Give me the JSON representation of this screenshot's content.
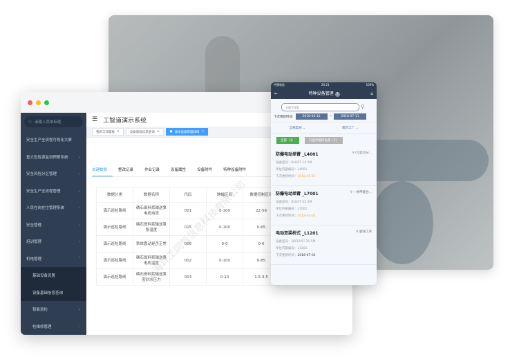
{
  "desktop": {
    "search_placeholder": "请输入菜单标题",
    "menu": [
      "安全生产全流程可视化大屏",
      "重大危险源监测预警系统",
      "安全风险分区管理",
      "安全生产全流程管理",
      "人员在岗在位管理系统",
      "安全管理",
      "培训管理",
      "机电管理"
    ],
    "submenu": [
      "基础设备设置",
      "设备基础信息查询",
      "智能巡检",
      "检维修管理"
    ],
    "app_title": "工智道演示系统",
    "page_tabs": [
      "我的工作面板",
      "设备基础信息查询",
      "具体设备管理详情"
    ],
    "content_tabs": [
      "关键数据",
      "整改记录",
      "作业记录",
      "设备属性",
      "设备附件",
      "特种设备附件"
    ],
    "table": {
      "headers": [
        "数据分类",
        "数据名称",
        "代码",
        "跨幅区间",
        "数据控制区间"
      ],
      "rows": [
        [
          "演示巡检路线",
          "磷石膏料浆输送泵电机电流",
          "001",
          "0-100",
          "22-58"
        ],
        [
          "演示巡检路线",
          "磷石膏料浆输送泵泵温度",
          "015",
          "0-100",
          "0-65"
        ],
        [
          "演示巡检路线",
          "泵体震动是否正常",
          "006",
          "0-0",
          "0-0"
        ],
        [
          "演示巡检路线",
          "磷石膏料浆输送泵电机温度",
          "002",
          "0-100",
          "0-85"
        ],
        [
          "演示巡检路线",
          "磷石膏料浆输送泵密封水压力",
          "003",
          "0-10",
          "1.5-3.5"
        ]
      ]
    },
    "watermark": "上海异工同智信息科技有限公司"
  },
  "mobile": {
    "carrier": "中国电信",
    "time": "20:21",
    "battery": "100%",
    "title": "特种设备管理",
    "search_placeholder": "关键字搜索",
    "date_label": "下次更新时间:",
    "date_from": "2018-04-11",
    "date_sep": "~",
    "date_to": "2018-07-11",
    "filter_category": "全部类别",
    "filter_factory": "南京工厂",
    "btn_all": "全部（3）",
    "btn_expiring": "只显示临检设备（2）",
    "cards": [
      {
        "name": "防爆电动单臂 _L4001",
        "location": "C0滤冷分...",
        "model_label": "设备型号：",
        "model": "BLDST-14.5M",
        "code_label": "单位内部编号：",
        "code": "L4001",
        "date_label": "下次更新时间：",
        "date": "2018-05-01",
        "highlight": true
      },
      {
        "name": "防爆电动单臂 _L7001",
        "location": "一楼甲醛合...",
        "model_label": "设备型号：",
        "model": "BLDST-22.5M",
        "code_label": "单位内部编号：",
        "code": "L7001",
        "date_label": "下次更新时间：",
        "date": "2018-05-01",
        "highlight": true
      },
      {
        "name": "电动双梁桥式 _L1201",
        "location": "磨煤工序",
        "model_label": "设备型号：",
        "model": "QD32/5T-25.5M",
        "code_label": "单位内部编号：",
        "code": "L1201",
        "date_label": "下次更新时间：",
        "date": "2018-07-01",
        "highlight": false
      }
    ]
  },
  "colors": {
    "sidebar": "#2f3e52",
    "accent": "#409eff",
    "green": "#4caf50",
    "orange": "#f2a93b"
  }
}
